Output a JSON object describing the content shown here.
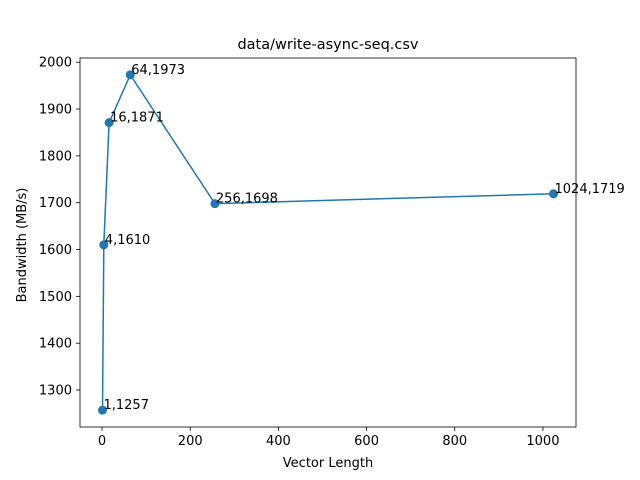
{
  "chart_data": {
    "type": "line",
    "title": "data/write-async-seq.csv",
    "xlabel": "Vector Length",
    "ylabel": "Bandwidth (MB/s)",
    "xlim": [
      -50,
      1075
    ],
    "ylim": [
      1221,
      2009
    ],
    "xticks": [
      0,
      200,
      400,
      600,
      800,
      1000
    ],
    "yticks": [
      1300,
      1400,
      1500,
      1600,
      1700,
      1800,
      1900,
      2000
    ],
    "grid": false,
    "marker": "circle",
    "color": "#1f77b4",
    "series": [
      {
        "x": [
          1,
          4,
          16,
          64,
          256,
          1024
        ],
        "y": [
          1257,
          1610,
          1871,
          1973,
          1698,
          1719
        ],
        "labels": [
          "1,1257",
          "4,1610",
          "16,1871",
          "64,1973",
          "256,1698",
          "1024,1719"
        ]
      }
    ]
  }
}
